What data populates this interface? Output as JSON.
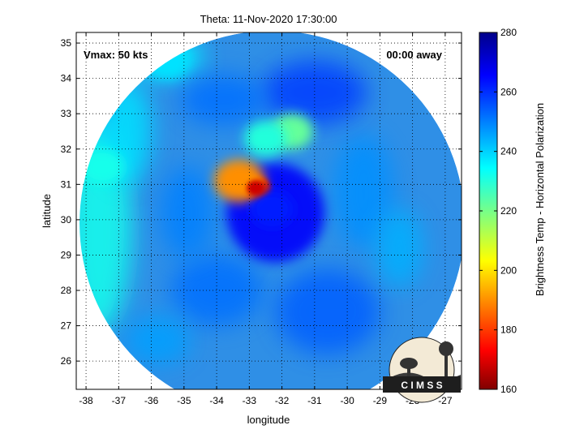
{
  "chart_data": {
    "type": "heatmap",
    "title": "Theta: 11-Nov-2020 17:30:00",
    "xlabel": "longitude",
    "ylabel": "latitude",
    "xlim": [
      -38.3,
      -26.5
    ],
    "ylim": [
      25.2,
      35.3
    ],
    "xticks": [
      -38,
      -37,
      -36,
      -35,
      -34,
      -33,
      -32,
      -31,
      -30,
      -29,
      -28,
      -27
    ],
    "yticks": [
      26,
      27,
      28,
      29,
      30,
      31,
      32,
      33,
      34,
      35
    ],
    "grid": true,
    "colorbar": {
      "label": "Brightness Temp - Horizontal Polarization",
      "min": 160,
      "max": 280,
      "ticks": [
        160,
        180,
        200,
        220,
        240,
        260,
        280
      ],
      "colormap": "jet"
    },
    "annotations": {
      "vmax": "Vmax: 50 kts",
      "away": "00:00 away"
    },
    "logo_text": "C I M S S",
    "swath": {
      "center_lon": -32.3,
      "center_lat": 29.9,
      "radius_deg": 5.45
    },
    "storm_center": {
      "lon": -32.8,
      "lat": 30.7
    },
    "features": [
      {
        "lon": -32.8,
        "lat": 30.9,
        "value": 168
      },
      {
        "lon": -33.3,
        "lat": 31.1,
        "value": 190
      },
      {
        "lon": -31.7,
        "lat": 32.5,
        "value": 222
      },
      {
        "lon": -32.5,
        "lat": 32.3,
        "value": 230
      },
      {
        "lon": -37.5,
        "lat": 31.5,
        "value": 232
      },
      {
        "lon": -35.5,
        "lat": 34.5,
        "value": 238
      },
      {
        "lon": -32.3,
        "lat": 30.3,
        "value": 262
      }
    ]
  }
}
